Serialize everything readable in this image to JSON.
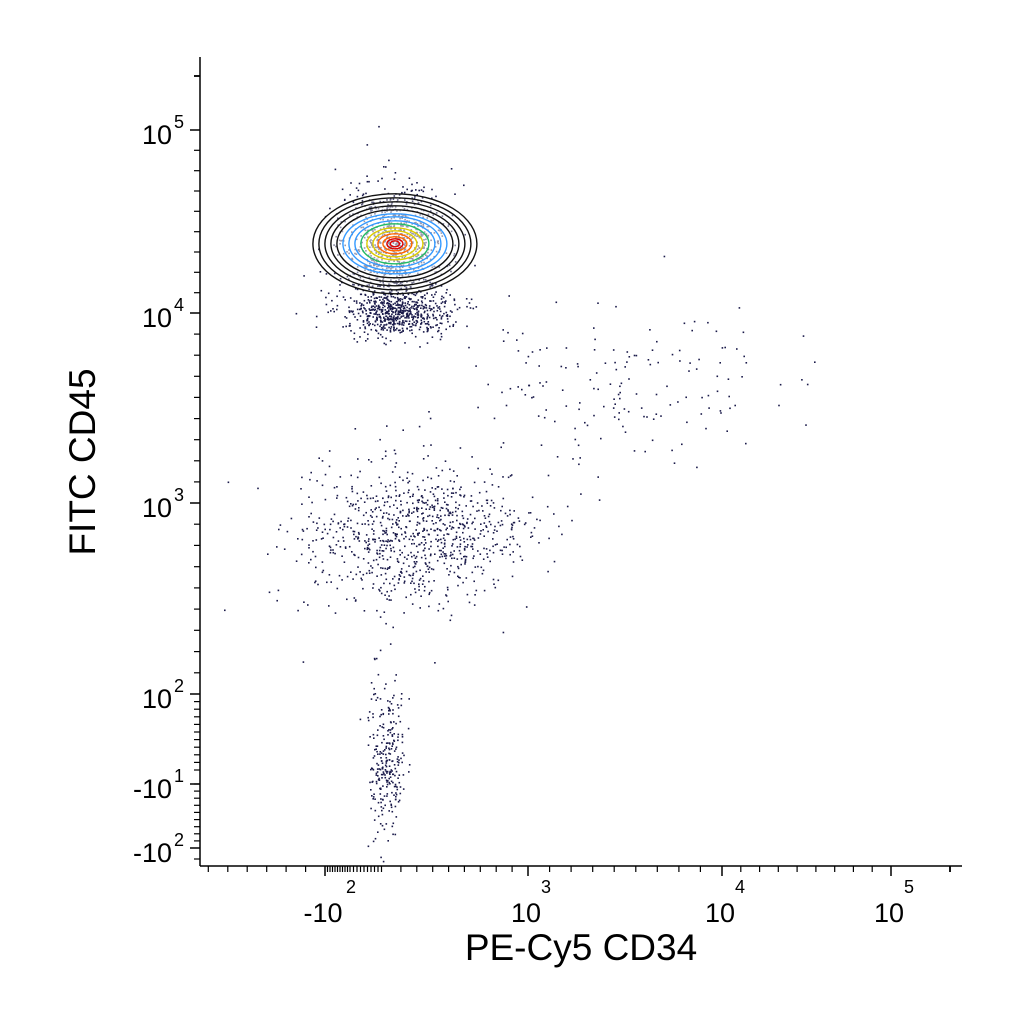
{
  "chart_data": {
    "type": "scatter",
    "title": "",
    "xlabel": "PE-Cy5 CD34",
    "ylabel": "FITC CD45",
    "x_scale": "biexponential",
    "y_scale": "biexponential",
    "x_ticks": [
      {
        "value": -100,
        "base": "-10",
        "exp": "2"
      },
      {
        "value": 1000,
        "base": "10",
        "exp": "3"
      },
      {
        "value": 10000,
        "base": "10",
        "exp": "4"
      },
      {
        "value": 100000,
        "base": "10",
        "exp": "5"
      }
    ],
    "y_ticks": [
      {
        "value": -100,
        "base": "-10",
        "exp": "2"
      },
      {
        "value": -10,
        "base": "-10",
        "exp": "1"
      },
      {
        "value": 100,
        "base": "10",
        "exp": "2"
      },
      {
        "value": 1000,
        "base": "10",
        "exp": "3"
      },
      {
        "value": 10000,
        "base": "10",
        "exp": "4"
      },
      {
        "value": 100000,
        "base": "10",
        "exp": "5"
      }
    ],
    "grid": false,
    "legend": "none",
    "point_color": "#1a1a4a",
    "contour_colors": [
      "#111111",
      "#3399ff",
      "#22bb66",
      "#ddcc00",
      "#ff6600",
      "#dd0000"
    ],
    "populations": [
      {
        "center": [
          150,
          45000
        ],
        "spread": [
          2.2,
          1.35
        ],
        "count": 900
      },
      {
        "center": [
          170,
          11000
        ],
        "spread": [
          2.1,
          1.6
        ],
        "count": 650
      },
      {
        "center": [
          280,
          850
        ],
        "spread": [
          2.4,
          1.6
        ],
        "count": 950
      },
      {
        "center": [
          5000,
          6500
        ],
        "spread": [
          1.8,
          1.35
        ],
        "count": 170
      },
      {
        "center": [
          110,
          20
        ],
        "spread": [
          1.6,
          4.0
        ],
        "count": 280
      }
    ]
  }
}
